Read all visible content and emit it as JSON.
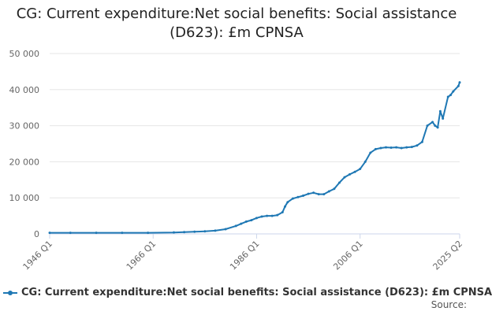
{
  "chart_data": {
    "type": "line",
    "title": "CG: Current expenditure:Net social benefits: Social assistance (D623): £m CPNSA",
    "xlabel": "",
    "ylabel": "",
    "ylim": [
      0,
      50000
    ],
    "y_ticks": [
      0,
      10000,
      20000,
      30000,
      40000,
      50000
    ],
    "y_tick_labels": [
      "0",
      "10 000",
      "20 000",
      "30 000",
      "40 000",
      "50 000"
    ],
    "x_range": [
      1946.0,
      2025.25
    ],
    "x_ticks": [
      1946.0,
      1966.0,
      1986.0,
      2006.0,
      2025.25
    ],
    "x_tick_labels": [
      "1946 Q1",
      "1966 Q1",
      "1986 Q1",
      "2006 Q1",
      "2025 Q2"
    ],
    "grid": true,
    "legend_position": "bottom",
    "series": [
      {
        "name": "CG: Current expenditure:Net social benefits: Social assistance (D623): £m CPNSA",
        "color": "#1f78b4",
        "x": [
          1946.0,
          1950.0,
          1955.0,
          1960.0,
          1965.0,
          1970.0,
          1972.0,
          1974.0,
          1976.0,
          1978.0,
          1980.0,
          1982.0,
          1983.0,
          1984.0,
          1985.0,
          1986.0,
          1987.0,
          1988.0,
          1989.0,
          1990.0,
          1991.0,
          1991.5,
          1992.0,
          1993.0,
          1994.0,
          1995.0,
          1996.0,
          1997.0,
          1998.0,
          1999.0,
          2000.0,
          2001.0,
          2002.0,
          2003.0,
          2004.0,
          2005.0,
          2006.0,
          2007.0,
          2008.0,
          2009.0,
          2010.0,
          2011.0,
          2012.0,
          2013.0,
          2014.0,
          2015.0,
          2016.0,
          2017.0,
          2018.0,
          2019.0,
          2020.0,
          2020.5,
          2021.0,
          2021.5,
          2022.0,
          2023.0,
          2023.5,
          2024.0,
          2025.0,
          2025.25
        ],
        "values": [
          300,
          300,
          300,
          300,
          300,
          400,
          500,
          600,
          700,
          900,
          1300,
          2200,
          2800,
          3400,
          3800,
          4400,
          4800,
          5000,
          5000,
          5200,
          6000,
          7600,
          8800,
          9800,
          10200,
          10600,
          11100,
          11400,
          11000,
          11000,
          11800,
          12500,
          14200,
          15700,
          16500,
          17200,
          18000,
          20000,
          22500,
          23500,
          23800,
          24000,
          23900,
          24000,
          23800,
          24000,
          24100,
          24500,
          25500,
          30000,
          31000,
          30000,
          29500,
          34000,
          32000,
          38000,
          38500,
          39500,
          41000,
          42000
        ]
      }
    ]
  },
  "legend": {
    "label": "CG: Current expenditure:Net social benefits: Social assistance (D623): £m CPNSA"
  },
  "source": {
    "label": "Source:"
  }
}
